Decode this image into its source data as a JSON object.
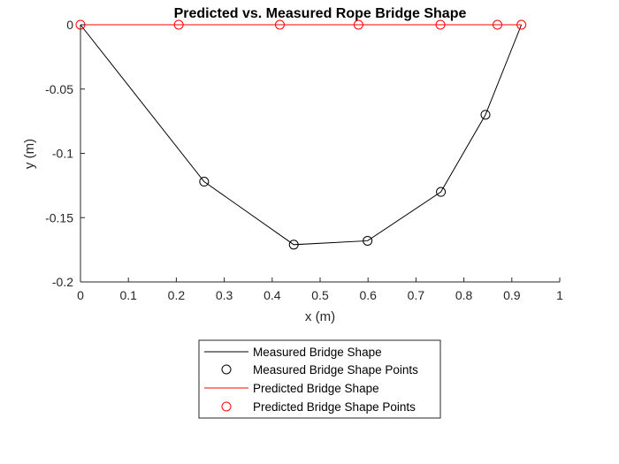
{
  "chart_data": {
    "type": "line",
    "title": "Predicted vs. Measured Rope Bridge Shape",
    "xlabel": "x (m)",
    "ylabel": "y (m)",
    "xlim": [
      0,
      1
    ],
    "ylim": [
      -0.2,
      0
    ],
    "xticks": [
      "0",
      "0.1",
      "0.2",
      "0.3",
      "0.4",
      "0.5",
      "0.6",
      "0.7",
      "0.8",
      "0.9",
      "1"
    ],
    "yticks": [
      "0",
      "-0.05",
      "-0.1",
      "-0.15",
      "-0.2"
    ],
    "grid": false,
    "legend_placement": "bottom-center-outside",
    "series": [
      {
        "name": "Measured Bridge Shape",
        "style": "line",
        "color": "#000000",
        "x": [
          0,
          0.258,
          0.445,
          0.599,
          0.752,
          0.845,
          0.92
        ],
        "y": [
          0,
          -0.122,
          -0.171,
          -0.168,
          -0.13,
          -0.07,
          0
        ]
      },
      {
        "name": "Measured Bridge Shape Points",
        "style": "marker",
        "color": "#000000",
        "x": [
          0.258,
          0.445,
          0.599,
          0.752,
          0.845
        ],
        "y": [
          -0.122,
          -0.171,
          -0.168,
          -0.13,
          -0.07
        ]
      },
      {
        "name": "Predicted Bridge Shape",
        "style": "line",
        "color": "#ff0000",
        "x": [
          0,
          0.92
        ],
        "y": [
          0,
          0
        ]
      },
      {
        "name": "Predicted Bridge Shape Points",
        "style": "marker",
        "color": "#ff0000",
        "x": [
          0,
          0.205,
          0.416,
          0.58,
          0.751,
          0.87,
          0.92
        ],
        "y": [
          0,
          0,
          0,
          0,
          0,
          0,
          0
        ]
      }
    ]
  }
}
